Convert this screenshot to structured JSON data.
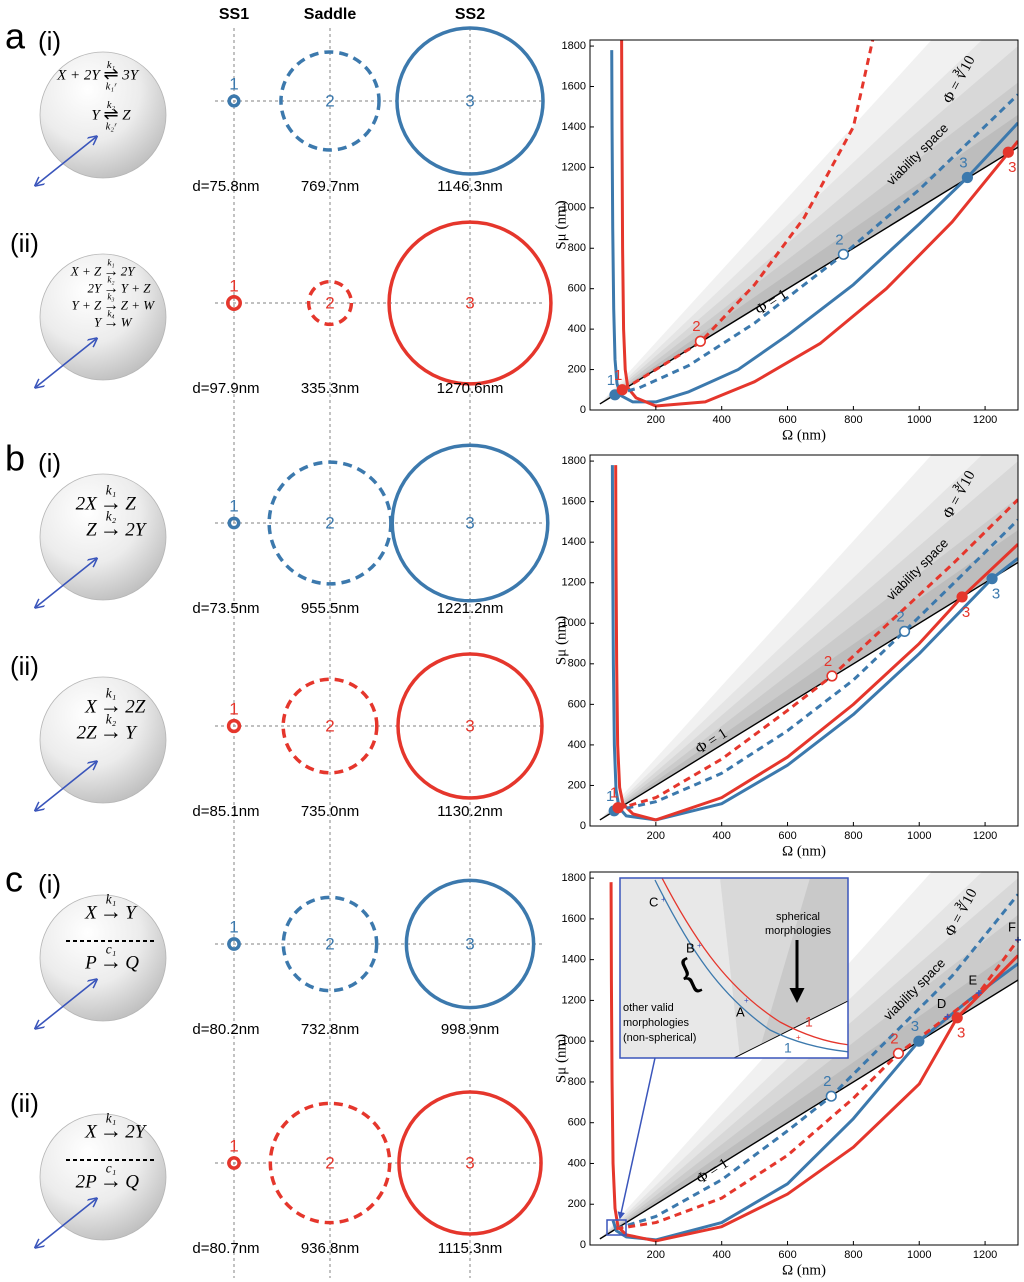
{
  "headers": [
    "SS1",
    "Saddle",
    "SS2"
  ],
  "panels": [
    {
      "letter": "a",
      "rows": [
        {
          "label": "(i)",
          "color": "#3c79ad",
          "separator": false,
          "reactions": [
            {
              "lhs": "X + 2Y",
              "arrow": "⇌",
              "k": "k₁",
              "kr": "k₁ʳ",
              "rhs": "3Y"
            },
            {
              "lhs": "Y",
              "arrow": "⇌",
              "k": "k₂",
              "kr": "k₂ʳ",
              "rhs": "Z"
            }
          ],
          "states": [
            {
              "number": "1",
              "d": 75.8,
              "label": "d=75.8nm"
            },
            {
              "number": "2",
              "d": 769.7,
              "label": "769.7nm"
            },
            {
              "number": "3",
              "d": 1146.3,
              "label": "1146.3nm"
            }
          ]
        },
        {
          "label": "(ii)",
          "color": "#e5362c",
          "separator": false,
          "reactions": [
            {
              "lhs": "X + Z",
              "arrow": "→",
              "k": "k₁",
              "rhs": "2Y"
            },
            {
              "lhs": "2Y",
              "arrow": "→",
              "k": "k₂",
              "rhs": "Y + Z"
            },
            {
              "lhs": "Y + Z",
              "arrow": "→",
              "k": "k₃",
              "rhs": "Z + W"
            },
            {
              "lhs": "Y",
              "arrow": "→",
              "k": "k₄",
              "rhs": "W"
            }
          ],
          "states": [
            {
              "number": "1",
              "d": 97.9,
              "label": "d=97.9nm"
            },
            {
              "number": "2",
              "d": 335.3,
              "label": "335.3nm"
            },
            {
              "number": "3",
              "d": 1270.6,
              "label": "1270.6nm"
            }
          ]
        }
      ]
    },
    {
      "letter": "b",
      "rows": [
        {
          "label": "(i)",
          "color": "#3c79ad",
          "separator": false,
          "reactions": [
            {
              "lhs": "2X",
              "arrow": "→",
              "k": "k₁",
              "rhs": "Z"
            },
            {
              "lhs": "Z",
              "arrow": "→",
              "k": "k₂",
              "rhs": "2Y"
            }
          ],
          "states": [
            {
              "number": "1",
              "d": 73.5,
              "label": "d=73.5nm"
            },
            {
              "number": "2",
              "d": 955.5,
              "label": "955.5nm"
            },
            {
              "number": "3",
              "d": 1221.2,
              "label": "1221.2nm"
            }
          ]
        },
        {
          "label": "(ii)",
          "color": "#e5362c",
          "separator": false,
          "reactions": [
            {
              "lhs": "X",
              "arrow": "→",
              "k": "k₁",
              "rhs": "2Z"
            },
            {
              "lhs": "2Z",
              "arrow": "→",
              "k": "k₂",
              "rhs": "Y"
            }
          ],
          "states": [
            {
              "number": "1",
              "d": 85.1,
              "label": "d=85.1nm"
            },
            {
              "number": "2",
              "d": 735.0,
              "label": "735.0nm"
            },
            {
              "number": "3",
              "d": 1130.2,
              "label": "1130.2nm"
            }
          ]
        }
      ]
    },
    {
      "letter": "c",
      "rows": [
        {
          "label": "(i)",
          "color": "#3c79ad",
          "separator": true,
          "reactions": [
            {
              "lhs": "X",
              "arrow": "→",
              "k": "k₁",
              "rhs": "Y"
            },
            {
              "lhs": "P",
              "arrow": "→",
              "k": "c₁",
              "rhs": "Q"
            }
          ],
          "states": [
            {
              "number": "1",
              "d": 80.2,
              "label": "d=80.2nm"
            },
            {
              "number": "2",
              "d": 732.8,
              "label": "732.8nm"
            },
            {
              "number": "3",
              "d": 998.9,
              "label": "998.9nm"
            }
          ]
        },
        {
          "label": "(ii)",
          "color": "#e5362c",
          "separator": true,
          "reactions": [
            {
              "lhs": "X",
              "arrow": "→",
              "k": "k₁",
              "rhs": "2Y"
            },
            {
              "lhs": "2P",
              "arrow": "→",
              "k": "c₁",
              "rhs": "Q"
            }
          ],
          "states": [
            {
              "number": "1",
              "d": 80.7,
              "label": "d=80.7nm"
            },
            {
              "number": "2",
              "d": 936.8,
              "label": "936.8nm"
            },
            {
              "number": "3",
              "d": 1115.3,
              "label": "1115.3nm"
            }
          ]
        }
      ]
    }
  ],
  "chart_data": [
    {
      "type": "line",
      "xlabel": "Ω (nm)",
      "ylabel": "Sμ (nm)",
      "xlim": [
        0,
        1300
      ],
      "ylim": [
        0,
        1830
      ],
      "xticks": [
        200,
        400,
        600,
        800,
        1000,
        1200
      ],
      "yticks": [
        0,
        200,
        400,
        600,
        800,
        1000,
        1200,
        1400,
        1600,
        1800
      ],
      "annotations": {
        "phi10": "Φ = ∛10",
        "viability": "viability space",
        "phi1": "Φ = 1"
      },
      "band_base": {
        "color": "#000000",
        "x": [
          30,
          1300
        ],
        "values": [
          30,
          1300
        ]
      },
      "bands": [
        {
          "color": "#f1f1f1",
          "x": [
            30,
            1300
          ],
          "values": [
            30,
            2300
          ]
        },
        {
          "color": "#e5e5e5",
          "x": [
            30,
            1300
          ],
          "values": [
            30,
            2000
          ]
        },
        {
          "color": "#d8d8d8",
          "x": [
            30,
            1300
          ],
          "values": [
            30,
            1800
          ]
        },
        {
          "color": "#cbcbcb",
          "x": [
            30,
            1300
          ],
          "values": [
            30,
            1620
          ]
        },
        {
          "color": "#bdbdbd",
          "x": [
            30,
            1300
          ],
          "values": [
            30,
            1460
          ]
        }
      ],
      "series": [
        {
          "color": "#3c79ad",
          "dashed": false,
          "x": [
            66,
            67,
            69,
            72,
            76,
            82,
            95,
            130,
            200,
            300,
            450,
            600,
            800,
            1000,
            1146,
            1300
          ],
          "values": [
            1780,
            1400,
            900,
            500,
            250,
            130,
            70,
            40,
            40,
            90,
            200,
            370,
            620,
            920,
            1150,
            1420
          ]
        },
        {
          "color": "#e5362c",
          "dashed": false,
          "x": [
            96,
            97,
            99,
            102,
            107,
            115,
            140,
            200,
            350,
            500,
            700,
            900,
            1100,
            1270,
            1300
          ],
          "values": [
            1840,
            1400,
            800,
            400,
            200,
            110,
            60,
            20,
            40,
            140,
            330,
            600,
            930,
            1270,
            1330
          ]
        },
        {
          "color": "#3c79ad",
          "dashed": true,
          "x": [
            80,
            150,
            300,
            500,
            770,
            1000,
            1300
          ],
          "values": [
            80,
            110,
            220,
            430,
            770,
            1090,
            1560
          ]
        },
        {
          "color": "#e5362c",
          "dashed": true,
          "x": [
            100,
            200,
            335,
            500,
            650,
            800,
            860
          ],
          "values": [
            100,
            200,
            335,
            620,
            950,
            1400,
            1840
          ]
        }
      ],
      "points": [
        {
          "label": "1",
          "color": "#3c79ad",
          "filled": true,
          "x": 75.8,
          "y": 75
        },
        {
          "label": "1",
          "color": "#e5362c",
          "filled": true,
          "x": 97.9,
          "y": 100
        },
        {
          "label": "2",
          "color": "#3c79ad",
          "filled": false,
          "x": 769.7,
          "y": 770
        },
        {
          "label": "2",
          "color": "#e5362c",
          "filled": false,
          "x": 335.3,
          "y": 340
        },
        {
          "label": "3",
          "color": "#3c79ad",
          "filled": true,
          "x": 1146.3,
          "y": 1150
        },
        {
          "label": "3",
          "color": "#e5362c",
          "filled": true,
          "x": 1270.6,
          "y": 1275
        }
      ]
    },
    {
      "type": "line",
      "xlabel": "Ω (nm)",
      "ylabel": "Sμ (nm)",
      "xlim": [
        0,
        1300
      ],
      "ylim": [
        0,
        1830
      ],
      "xticks": [
        200,
        400,
        600,
        800,
        1000,
        1200
      ],
      "yticks": [
        0,
        200,
        400,
        600,
        800,
        1000,
        1200,
        1400,
        1600,
        1800
      ],
      "annotations": {
        "phi10": "Φ = ∛10",
        "viability": "viability space",
        "phi1": "Φ = 1"
      },
      "band_base": {
        "color": "#000000",
        "x": [
          30,
          1300
        ],
        "values": [
          30,
          1300
        ]
      },
      "bands": [
        {
          "color": "#f1f1f1",
          "x": [
            30,
            1300
          ],
          "values": [
            30,
            2300
          ]
        },
        {
          "color": "#e5e5e5",
          "x": [
            30,
            1300
          ],
          "values": [
            30,
            2000
          ]
        },
        {
          "color": "#d8d8d8",
          "x": [
            30,
            1300
          ],
          "values": [
            30,
            1800
          ]
        },
        {
          "color": "#cbcbcb",
          "x": [
            30,
            1300
          ],
          "values": [
            30,
            1620
          ]
        },
        {
          "color": "#bdbdbd",
          "x": [
            30,
            1300
          ],
          "values": [
            30,
            1460
          ]
        }
      ],
      "series": [
        {
          "color": "#3c79ad",
          "dashed": false,
          "x": [
            68,
            69,
            71,
            74,
            79,
            88,
            110,
            200,
            400,
            600,
            800,
            1000,
            1221,
            1300
          ],
          "values": [
            1780,
            1300,
            800,
            400,
            180,
            90,
            50,
            30,
            110,
            300,
            550,
            850,
            1220,
            1320
          ]
        },
        {
          "color": "#e5362c",
          "dashed": false,
          "x": [
            78,
            79,
            81,
            84,
            90,
            100,
            130,
            200,
            400,
            600,
            800,
            1000,
            1130,
            1300
          ],
          "values": [
            1780,
            1300,
            800,
            400,
            190,
            110,
            60,
            30,
            140,
            340,
            600,
            900,
            1130,
            1390
          ]
        },
        {
          "color": "#3c79ad",
          "dashed": true,
          "x": [
            75,
            200,
            400,
            600,
            800,
            955,
            1100,
            1300
          ],
          "values": [
            75,
            120,
            260,
            470,
            720,
            960,
            1190,
            1510
          ]
        },
        {
          "color": "#e5362c",
          "dashed": true,
          "x": [
            85,
            200,
            400,
            600,
            735,
            900,
            1100,
            1300
          ],
          "values": [
            85,
            140,
            330,
            570,
            740,
            990,
            1290,
            1610
          ]
        }
      ],
      "points": [
        {
          "label": "1",
          "color": "#3c79ad",
          "filled": true,
          "x": 73.5,
          "y": 75
        },
        {
          "label": "1",
          "color": "#e5362c",
          "filled": true,
          "x": 85.1,
          "y": 90
        },
        {
          "label": "2",
          "color": "#3c79ad",
          "filled": false,
          "x": 955.5,
          "y": 960
        },
        {
          "label": "2",
          "color": "#e5362c",
          "filled": false,
          "x": 735.0,
          "y": 740
        },
        {
          "label": "3",
          "color": "#3c79ad",
          "filled": true,
          "x": 1221.2,
          "y": 1220
        },
        {
          "label": "3",
          "color": "#e5362c",
          "filled": true,
          "x": 1130.2,
          "y": 1130
        }
      ]
    },
    {
      "type": "line",
      "xlabel": "Ω (nm)",
      "ylabel": "Sμ (nm)",
      "xlim": [
        0,
        1300
      ],
      "ylim": [
        0,
        1830
      ],
      "xticks": [
        200,
        400,
        600,
        800,
        1000,
        1200
      ],
      "yticks": [
        0,
        200,
        400,
        600,
        800,
        1000,
        1200,
        1400,
        1600,
        1800
      ],
      "annotations": {
        "phi10": "Φ = ∛10",
        "viability": "viability space",
        "phi1": "Φ = 1"
      },
      "band_base": {
        "color": "#000000",
        "x": [
          30,
          1300
        ],
        "values": [
          30,
          1300
        ]
      },
      "bands": [
        {
          "color": "#f1f1f1",
          "x": [
            30,
            1300
          ],
          "values": [
            30,
            2300
          ]
        },
        {
          "color": "#e5e5e5",
          "x": [
            30,
            1300
          ],
          "values": [
            30,
            2000
          ]
        },
        {
          "color": "#d8d8d8",
          "x": [
            30,
            1300
          ],
          "values": [
            30,
            1800
          ]
        },
        {
          "color": "#cbcbcb",
          "x": [
            30,
            1300
          ],
          "values": [
            30,
            1620
          ]
        },
        {
          "color": "#bdbdbd",
          "x": [
            30,
            1300
          ],
          "values": [
            30,
            1460
          ]
        }
      ],
      "series": [
        {
          "color": "#3c79ad",
          "dashed": false,
          "x": [
            70,
            80,
            110,
            200,
            400,
            600,
            800,
            999,
            1150,
            1300
          ],
          "values": [
            120,
            70,
            40,
            25,
            110,
            300,
            620,
            1000,
            1200,
            1380
          ]
        },
        {
          "color": "#e5362c",
          "dashed": false,
          "x": [
            64,
            65,
            67,
            70,
            76,
            85,
            110,
            200,
            400,
            600,
            800,
            1000,
            1115,
            1300
          ],
          "values": [
            1780,
            1300,
            800,
            400,
            180,
            90,
            50,
            20,
            90,
            250,
            480,
            790,
            1115,
            1420
          ]
        },
        {
          "color": "#3c79ad",
          "dashed": true,
          "x": [
            80,
            200,
            400,
            600,
            733,
            900,
            1100,
            1300
          ],
          "values": [
            80,
            140,
            320,
            560,
            730,
            1000,
            1320,
            1720
          ]
        },
        {
          "color": "#e5362c",
          "dashed": true,
          "x": [
            80,
            200,
            400,
            600,
            800,
            937,
            1086,
            1181,
            1300
          ],
          "values": [
            80,
            110,
            230,
            440,
            720,
            940,
            1120,
            1236,
            1497
          ]
        }
      ],
      "points": [
        {
          "label": "2",
          "color": "#3c79ad",
          "filled": false,
          "x": 732.8,
          "y": 730
        },
        {
          "label": "2",
          "color": "#e5362c",
          "filled": false,
          "x": 936.8,
          "y": 940
        },
        {
          "label": "3",
          "color": "#3c79ad",
          "filled": true,
          "x": 998.9,
          "y": 1000
        },
        {
          "label": "3",
          "color": "#e5362c",
          "filled": true,
          "x": 1115.3,
          "y": 1115
        }
      ],
      "crosses": [
        {
          "label": "D",
          "x": 1086,
          "y": 1120
        },
        {
          "label": "E",
          "x": 1181,
          "y": 1236
        },
        {
          "label": "F",
          "x": 1300,
          "y": 1497
        }
      ]
    }
  ],
  "inset": {
    "letters": [
      "C",
      "B",
      "A"
    ],
    "ss_blue": "1",
    "ss_red": "1",
    "spherical": [
      "spherical",
      "morphologies"
    ],
    "other": [
      "other valid",
      "morphologies",
      "(non-spherical)"
    ]
  }
}
